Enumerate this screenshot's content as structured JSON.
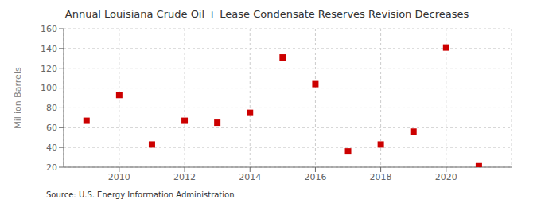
{
  "chart_data": {
    "type": "scatter",
    "title": "Annual Louisiana Crude Oil + Lease Condensate Reserves Revision Decreases",
    "y_label": "Million Barrels",
    "annotations": [
      "Source: U.S. Energy Information Administration"
    ],
    "x": [
      2009,
      2010,
      2011,
      2012,
      2013,
      2014,
      2015,
      2016,
      2017,
      2018,
      2019,
      2020,
      2021
    ],
    "values": [
      67,
      93,
      43,
      67,
      65,
      75,
      131,
      104,
      36,
      43,
      56,
      141,
      21
    ],
    "color": "#cc0000",
    "marker": "square",
    "xlim": [
      2008.3,
      2022.0
    ],
    "xticks": [
      2010,
      2012,
      2014,
      2016,
      2018,
      2020
    ],
    "ylim": [
      20,
      160
    ],
    "yticks": [
      20,
      40,
      60,
      80,
      100,
      120,
      140,
      160
    ],
    "grid": true
  }
}
